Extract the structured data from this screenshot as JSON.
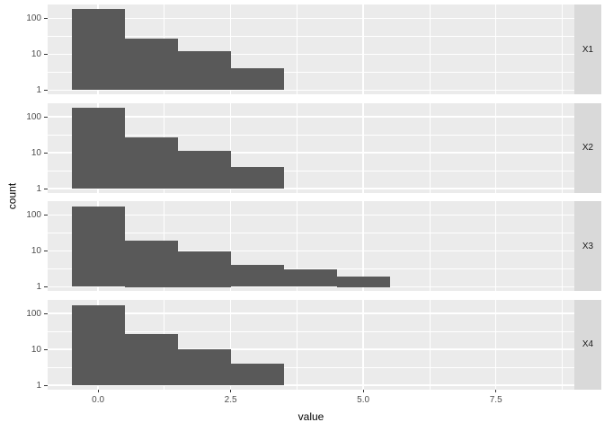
{
  "chart_data": {
    "type": "bar",
    "subtype": "faceted-histogram-log-y",
    "title": "",
    "xlabel": "value",
    "ylabel": "count",
    "legend": "none",
    "grid": "on",
    "x_scale": {
      "range": [
        -0.95,
        8.98
      ],
      "ticks": [
        0.0,
        2.5,
        5.0,
        7.5
      ],
      "tick_labels": [
        "0.0",
        "2.5",
        "5.0",
        "7.5"
      ],
      "minor_ticks": [
        1.25,
        3.75,
        6.25,
        8.75
      ]
    },
    "y_scale": {
      "type": "log10",
      "range_log": [
        -0.1125,
        2.3875
      ],
      "ticks": [
        100,
        10,
        1
      ],
      "tick_labels": [
        "100",
        "10",
        "1"
      ],
      "minor_log": [
        0.5,
        1.5
      ]
    },
    "bin_width": 1,
    "facets": [
      {
        "label": "X1",
        "bins": [
          {
            "x0": -0.5,
            "count": 185
          },
          {
            "x0": 0.5,
            "count": 27
          },
          {
            "x0": 1.5,
            "count": 12
          },
          {
            "x0": 2.5,
            "count": 4
          }
        ]
      },
      {
        "label": "X2",
        "bins": [
          {
            "x0": -0.5,
            "count": 180
          },
          {
            "x0": 0.5,
            "count": 27
          },
          {
            "x0": 1.5,
            "count": 11
          },
          {
            "x0": 2.5,
            "count": 4
          }
        ]
      },
      {
        "label": "X3",
        "bins": [
          {
            "x0": -0.5,
            "count": 175
          },
          {
            "x0": 0.5,
            "count": 20
          },
          {
            "x0": 1.5,
            "count": 10
          },
          {
            "x0": 2.5,
            "count": 4
          },
          {
            "x0": 3.5,
            "count": 3
          },
          {
            "x0": 4.5,
            "count": 2
          }
        ]
      },
      {
        "label": "X4",
        "bins": [
          {
            "x0": -0.5,
            "count": 170
          },
          {
            "x0": 0.5,
            "count": 27
          },
          {
            "x0": 1.5,
            "count": 10
          },
          {
            "x0": 2.5,
            "count": 4
          }
        ]
      }
    ],
    "colors": {
      "bar": "#595959",
      "panel_bg": "#EBEBEB",
      "strip_bg": "#D9D9D9",
      "grid": "#FFFFFF",
      "tick_text": "#4D4D4D",
      "strip_text": "#1A1A1A",
      "title_text": "#000000",
      "tick_mark": "#333333"
    }
  }
}
